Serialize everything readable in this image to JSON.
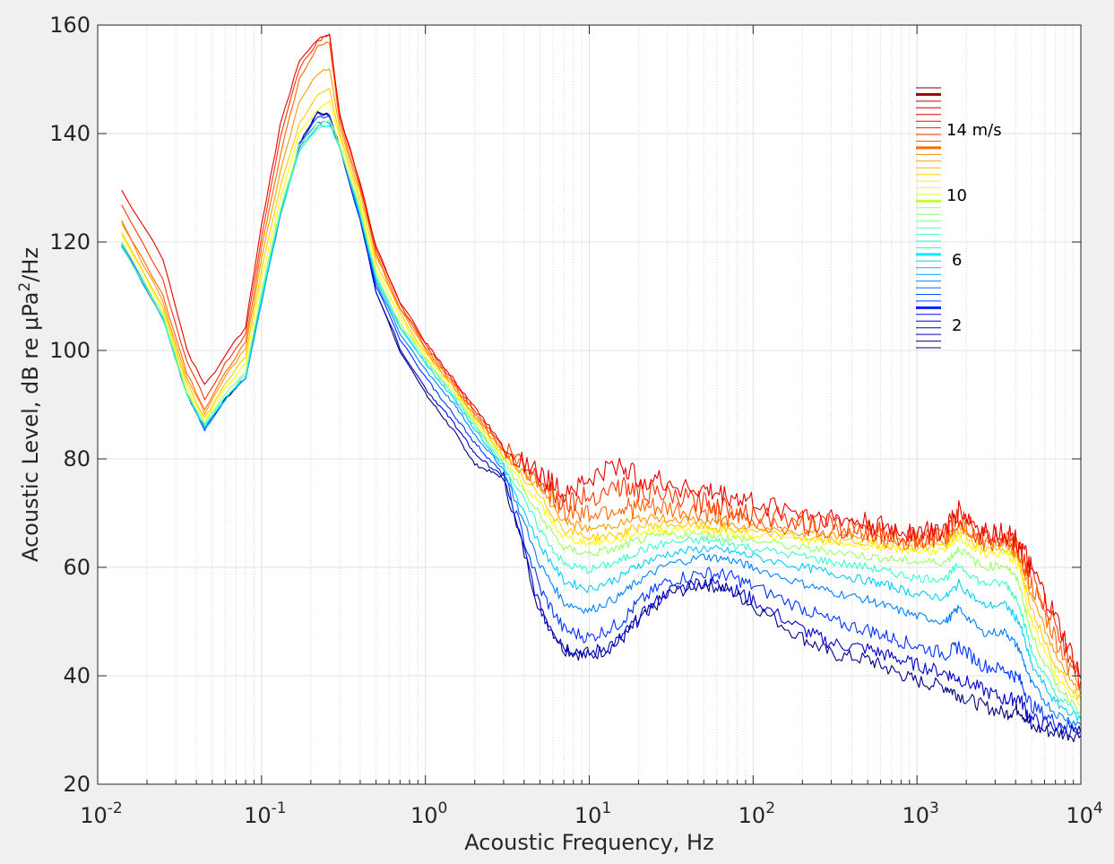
{
  "chart_data": {
    "type": "line",
    "xlabel": "Acoustic Frequency, Hz",
    "ylabel": "Acoustic Level, dB re μPa²/Hz",
    "xscale": "log",
    "xlim": [
      0.01,
      10000
    ],
    "ylim": [
      20,
      160
    ],
    "grid": true,
    "x_ticks": [
      {
        "base": "10",
        "exp": "-2",
        "value": 0.01
      },
      {
        "base": "10",
        "exp": "-1",
        "value": 0.1
      },
      {
        "base": "10",
        "exp": "0",
        "value": 1
      },
      {
        "base": "10",
        "exp": "1",
        "value": 10
      },
      {
        "base": "10",
        "exp": "2",
        "value": 100
      },
      {
        "base": "10",
        "exp": "3",
        "value": 1000
      },
      {
        "base": "10",
        "exp": "4",
        "value": 10000
      }
    ],
    "y_ticks": [
      20,
      40,
      60,
      80,
      100,
      120,
      140,
      160
    ],
    "legend": {
      "placement": "top-right",
      "labels": [
        "14 m/s",
        "10",
        "6",
        "2"
      ],
      "colormap": "jet"
    },
    "x": [
      0.014,
      0.025,
      0.035,
      0.045,
      0.06,
      0.08,
      0.1,
      0.13,
      0.17,
      0.22,
      0.26,
      0.3,
      0.4,
      0.5,
      0.7,
      1,
      1.5,
      2,
      3,
      5,
      7,
      10,
      15,
      20,
      30,
      50,
      70,
      100,
      200,
      300,
      500,
      700,
      1000,
      1500,
      1800,
      2500,
      3500,
      4200,
      5000,
      7000,
      10000
    ],
    "series": [
      {
        "color": "#00007f",
        "values": [
          119.5,
          106,
          92,
          85.5,
          91,
          95,
          109,
          125,
          138,
          144,
          143.5,
          137.5,
          124,
          111,
          100,
          92,
          85,
          79,
          76.5,
          52,
          45,
          43.5,
          46,
          50,
          55,
          57,
          56,
          53,
          47,
          44,
          43,
          41,
          39,
          38,
          36.5,
          34.5,
          33,
          34,
          30.5,
          29.5,
          29
        ]
      },
      {
        "color": "#0000cc",
        "values": [
          119.5,
          106,
          92,
          85.5,
          91,
          95,
          109,
          125,
          138,
          143.8,
          143.2,
          137.5,
          124,
          111,
          100.5,
          93,
          86.5,
          81,
          76.5,
          52.5,
          45.5,
          44,
          46.5,
          50.5,
          55.5,
          57.5,
          56.5,
          54,
          48.5,
          46,
          45,
          43.5,
          42,
          40.5,
          39.5,
          37.5,
          35.5,
          36,
          32,
          30.5,
          29.5
        ]
      },
      {
        "color": "#0033ff",
        "values": [
          119.5,
          106,
          92,
          85.5,
          91,
          95,
          109,
          125,
          138,
          143,
          143,
          137.5,
          124.5,
          112,
          102,
          95,
          88,
          83,
          77,
          56,
          48.5,
          47,
          49.5,
          53.5,
          57.5,
          59,
          58.5,
          56.5,
          52.5,
          50,
          48.5,
          47,
          45.5,
          44,
          45.5,
          42,
          41,
          39.5,
          34.5,
          31.5,
          30
        ]
      },
      {
        "color": "#0080ff",
        "values": [
          119.5,
          106,
          92,
          85.5,
          91,
          95,
          109,
          125,
          137.5,
          142,
          142,
          137.5,
          124.5,
          112.5,
          103,
          96.5,
          90,
          84.5,
          78,
          60.5,
          53.5,
          52,
          54.5,
          57.5,
          60.5,
          62,
          61.5,
          60,
          57,
          55.5,
          54,
          52.5,
          51,
          50,
          52.5,
          48,
          48,
          45,
          38.5,
          33,
          31
        ]
      },
      {
        "color": "#00ccff",
        "values": [
          119.5,
          106,
          92,
          85.5,
          91,
          95,
          109,
          125,
          137,
          141.5,
          141.5,
          137.5,
          125,
          113,
          104,
          97.5,
          91,
          85.5,
          78.5,
          64,
          57.5,
          56,
          58,
          60.5,
          62.5,
          63.5,
          63,
          62,
          60,
          59,
          57.5,
          56.5,
          55,
          54.5,
          57,
          53,
          53,
          50,
          42,
          35,
          32
        ]
      },
      {
        "color": "#33ffcc",
        "values": [
          119.5,
          106,
          92,
          86,
          91.5,
          95.5,
          110,
          125.5,
          137,
          141,
          141.5,
          137.5,
          125.5,
          113.5,
          104.5,
          98,
          91.5,
          86,
          79,
          67,
          60.5,
          59.5,
          61,
          63,
          64.5,
          65,
          64.5,
          63.5,
          62,
          61,
          60,
          59,
          58,
          58,
          60.5,
          57,
          57,
          53.5,
          44.5,
          36.5,
          32.5
        ]
      },
      {
        "color": "#99ff66",
        "values": [
          120,
          106.5,
          92.5,
          86.5,
          92,
          96,
          111,
          126,
          138,
          142,
          142.5,
          138,
          126,
          114,
          105,
          98.5,
          92,
          86.5,
          79.5,
          69.5,
          63.5,
          62.5,
          63.5,
          65,
          66,
          66,
          65.5,
          65,
          63.5,
          63,
          62,
          61.5,
          61,
          61,
          63.5,
          60,
          60.5,
          57,
          47.5,
          38.5,
          33.5
        ]
      },
      {
        "color": "#ffff00",
        "values": [
          121.5,
          107.5,
          93,
          87,
          93,
          97.5,
          113,
          128,
          140,
          144.5,
          146,
          139,
          127,
          115,
          106,
          99,
          92.5,
          87,
          80,
          71.5,
          65.5,
          64.5,
          65,
          66.5,
          67,
          67,
          66.5,
          66,
          65,
          64.5,
          64,
          63.5,
          63,
          63,
          65.5,
          62.5,
          62.5,
          60,
          50,
          40,
          34.5
        ]
      },
      {
        "color": "#ffcc00",
        "values": [
          122,
          108,
          94,
          87.5,
          94,
          99,
          115,
          130,
          142,
          147,
          148,
          140,
          128,
          116.5,
          107,
          99.5,
          93,
          87.5,
          80.5,
          73,
          67,
          65.5,
          66,
          67.5,
          68,
          67.5,
          67,
          66.5,
          65.5,
          65,
          64.5,
          64,
          63.5,
          64,
          66.5,
          63.5,
          63.5,
          61,
          52.5,
          42,
          35.5
        ]
      },
      {
        "color": "#ff9900",
        "values": [
          123.5,
          109,
          95,
          88.5,
          95,
          100.5,
          117,
          133,
          146,
          151,
          152,
          141,
          129,
          117.5,
          107.5,
          100,
          93,
          88,
          81,
          74.5,
          68.5,
          67,
          68,
          69,
          69,
          68.5,
          68,
          67.5,
          66.5,
          66,
          65.5,
          65,
          64.5,
          65,
          67.5,
          64.5,
          64.5,
          62,
          54.5,
          44,
          36.5
        ]
      },
      {
        "color": "#ff6600",
        "values": [
          124,
          110,
          96,
          89,
          96,
          101.5,
          119,
          136,
          150,
          156,
          157,
          142,
          130,
          118,
          108,
          100.5,
          93.5,
          88.5,
          81.5,
          76,
          70.5,
          70,
          71,
          71,
          70.5,
          70,
          69.5,
          68.5,
          67.5,
          67,
          66.5,
          65.5,
          65,
          65.5,
          68.5,
          65,
          65,
          63,
          56.5,
          46.5,
          38
        ]
      },
      {
        "color": "#ff3300",
        "values": [
          127,
          113,
          98,
          91,
          97.5,
          103,
          121,
          139,
          152,
          157,
          158.5,
          143,
          130.5,
          118.5,
          108.5,
          101,
          94,
          89,
          82,
          76.5,
          72,
          73,
          75,
          74,
          73,
          72,
          71,
          70,
          68.5,
          67.5,
          67,
          66,
          65.5,
          66,
          69.5,
          65.5,
          65.5,
          63.5,
          58.5,
          49,
          39
        ]
      },
      {
        "color": "#e60000",
        "values": [
          129.5,
          117,
          100,
          93.5,
          99,
          104.5,
          123,
          141.5,
          153.5,
          157.5,
          158,
          143.5,
          131,
          119,
          109,
          101.5,
          94.5,
          89.5,
          82.5,
          77,
          74,
          76,
          79,
          76.5,
          75.5,
          74,
          73,
          72,
          70,
          69,
          68,
          67,
          66.5,
          67,
          70.5,
          66.5,
          66.5,
          64.5,
          59.5,
          50.5,
          39.5
        ]
      }
    ]
  }
}
